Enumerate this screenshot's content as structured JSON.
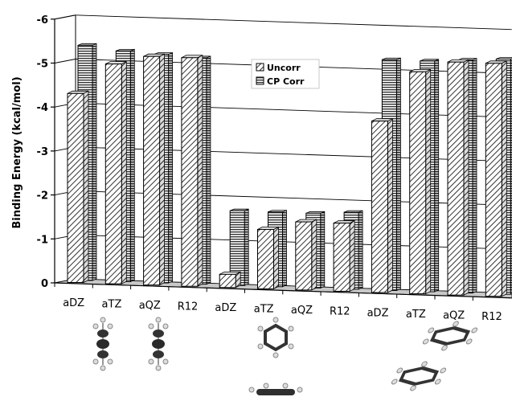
{
  "chart_data": {
    "type": "bar",
    "ylabel": "Binding Energy (kcal/mol)",
    "ylim": [
      0,
      -6
    ],
    "yticks": [
      "0",
      "-1",
      "-2",
      "-3",
      "-4",
      "-5",
      "-6"
    ],
    "categories": [
      "aDZ",
      "aTZ",
      "aQZ",
      "R12",
      "aDZ",
      "aTZ",
      "aQZ",
      "R12",
      "aDZ",
      "aTZ",
      "aQZ",
      "R12"
    ],
    "groups": [
      {
        "structure": "parallel-displaced benzene dimer",
        "categories": [
          "aDZ",
          "aTZ",
          "aQZ",
          "R12"
        ]
      },
      {
        "structure": "T-shaped benzene dimer",
        "categories": [
          "aDZ",
          "aTZ",
          "aQZ",
          "R12"
        ]
      },
      {
        "structure": "slipped-parallel benzene dimer",
        "categories": [
          "aDZ",
          "aTZ",
          "aQZ",
          "R12"
        ]
      }
    ],
    "series": [
      {
        "name": "Uncorr",
        "values": [
          -4.3,
          -5.0,
          -5.2,
          -5.2,
          -0.3,
          -1.35,
          -1.55,
          -1.55,
          -3.9,
          -5.05,
          -5.3,
          -5.3
        ]
      },
      {
        "name": "CP Corr",
        "values": [
          -5.35,
          -5.25,
          -5.2,
          -5.15,
          -1.7,
          -1.7,
          -1.7,
          -1.75,
          -5.25,
          -5.25,
          -5.3,
          -5.35
        ]
      }
    ],
    "legend": "top-center",
    "grid": true,
    "colors": {
      "grid": "#000000",
      "floor": "#c8c8c8",
      "bar_face": "#ffffff",
      "bar_pattern": "#333333"
    }
  }
}
